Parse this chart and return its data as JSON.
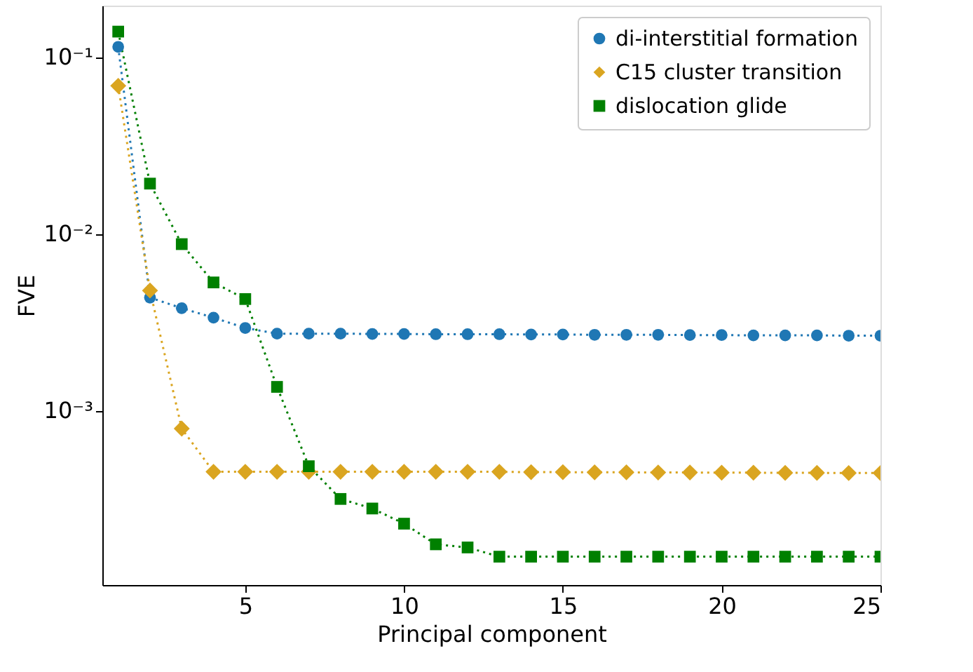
{
  "chart_data": {
    "type": "line",
    "xlabel": "Principal component",
    "ylabel": "FVE",
    "log": "y",
    "legend": "top right",
    "grid": false,
    "line_style": "dotted",
    "x": [
      1,
      2,
      3,
      4,
      5,
      6,
      7,
      8,
      9,
      10,
      11,
      12,
      13,
      14,
      15,
      16,
      17,
      18,
      19,
      20,
      21,
      22,
      23,
      24,
      25
    ],
    "xlim": [
      0.5,
      25
    ],
    "xticks": [
      5,
      10,
      15,
      20,
      25
    ],
    "ylim": [
      0.000103,
      0.195
    ],
    "yticks": [
      {
        "value": 0.1,
        "label": "10⁻¹"
      },
      {
        "value": 0.01,
        "label": "10⁻²"
      },
      {
        "value": 0.001,
        "label": "10⁻³"
      }
    ],
    "series": [
      {
        "name": "di-interstitial formation",
        "color": "#1f77b4",
        "marker": "circle",
        "values": [
          0.114,
          0.00435,
          0.00379,
          0.00335,
          0.00293,
          0.00272,
          0.00272,
          0.00272,
          0.00271,
          0.00271,
          0.0027,
          0.0027,
          0.0027,
          0.00269,
          0.00269,
          0.00268,
          0.00268,
          0.00268,
          0.00267,
          0.00267,
          0.00266,
          0.00266,
          0.00266,
          0.00265,
          0.00265
        ]
      },
      {
        "name": "C15 cluster transition",
        "color": "#daa520",
        "marker": "diamond",
        "values": [
          0.0686,
          0.00477,
          0.00079,
          0.00045,
          0.00045,
          0.00045,
          0.00045,
          0.00045,
          0.00045,
          0.00045,
          0.00045,
          0.00045,
          0.00045,
          0.000448,
          0.000448,
          0.000447,
          0.000447,
          0.000446,
          0.000446,
          0.000445,
          0.000445,
          0.000444,
          0.000444,
          0.000443,
          0.000443
        ]
      },
      {
        "name": "dislocation glide",
        "color": "#008000",
        "marker": "square",
        "values": [
          0.139,
          0.0192,
          0.00873,
          0.0053,
          0.00427,
          0.00136,
          0.000484,
          0.000316,
          0.000279,
          0.000229,
          0.000175,
          0.000168,
          0.000149,
          0.000149,
          0.000149,
          0.000149,
          0.000149,
          0.000149,
          0.000149,
          0.000149,
          0.000149,
          0.000149,
          0.000149,
          0.000149,
          0.000149
        ]
      }
    ]
  }
}
